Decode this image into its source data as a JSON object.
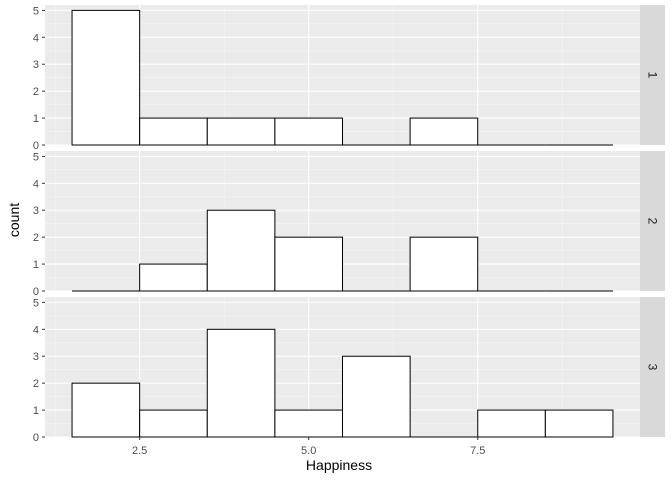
{
  "chart_data": {
    "type": "bar",
    "facet_direction": "rows",
    "xlabel": "Happiness",
    "ylabel": "count",
    "x_ticks": [
      "2.5",
      "5.0",
      "7.5"
    ],
    "x_tick_values": [
      2.5,
      5.0,
      7.5
    ],
    "y_ticks": [
      "0",
      "1",
      "2",
      "3",
      "4",
      "5"
    ],
    "xlim": [
      1.1,
      9.9
    ],
    "ylim": [
      0,
      5.2
    ],
    "bin_width": 1,
    "bin_centers": [
      2,
      3,
      4,
      5,
      6,
      7,
      8,
      9
    ],
    "panels": [
      {
        "label": "1",
        "values": [
          5,
          1,
          1,
          1,
          0,
          1,
          0,
          0
        ]
      },
      {
        "label": "2",
        "values": [
          0,
          1,
          3,
          2,
          0,
          2,
          0,
          0
        ]
      },
      {
        "label": "3",
        "values": [
          2,
          1,
          4,
          1,
          3,
          0,
          1,
          1
        ]
      }
    ],
    "colors": {
      "panel_background": "#ebebeb",
      "grid_major": "#ffffff",
      "grid_minor": "#f5f5f5",
      "bar_fill": "#ffffff",
      "bar_stroke": "#000000",
      "strip_background": "#d9d9d9"
    },
    "grid": true,
    "legend": "none"
  }
}
